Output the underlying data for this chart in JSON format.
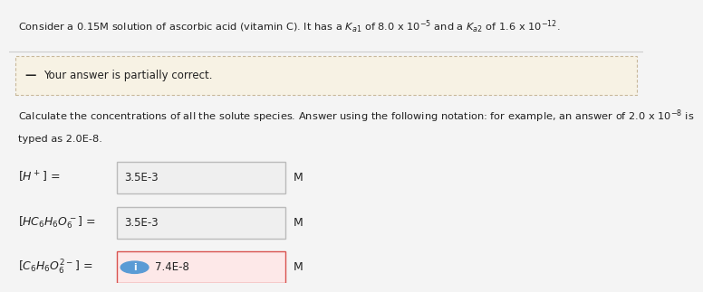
{
  "banner_text": "Your answer is partially correct.",
  "instruction_line1": "Calculate the concentrations of all the solute species. Answer using the following notation: for example, an answer of 2.0 x 10",
  "instruction_line2": "typed as 2.0E-8.",
  "row1_value": "3.5E-3",
  "row1_unit": "M",
  "row2_value": "3.5E-3",
  "row2_unit": "M",
  "row3_value": "7.4E-8",
  "row3_unit": "M",
  "bg_color": "#f4f4f4",
  "banner_bg": "#f7f2e4",
  "banner_border": "#c8b89a",
  "input_bg_normal": "#efefef",
  "input_bg_highlight": "#fde8e8",
  "input_border_normal": "#bbbbbb",
  "input_border_highlight": "#d9534f",
  "text_color": "#222222",
  "icon_color": "#5b9bd5",
  "sep_color": "#cccccc"
}
